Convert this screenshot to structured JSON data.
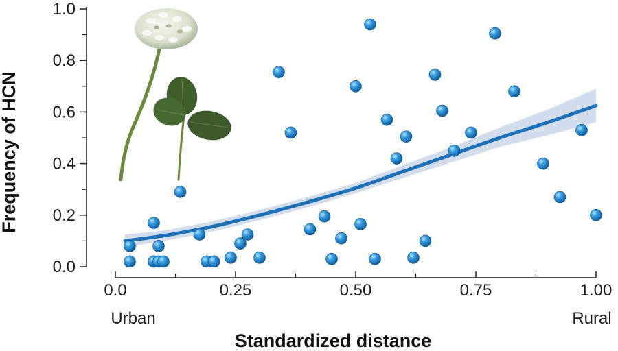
{
  "chart_data": {
    "type": "scatter",
    "title": "",
    "xlabel": "Standardized distance",
    "ylabel": "Frequency of HCN",
    "xlim": [
      0,
      1
    ],
    "ylim": [
      0,
      1
    ],
    "x_ticks": [
      0,
      0.25,
      0.5,
      0.75,
      1
    ],
    "x_tick_labels": [
      "0.0",
      "0.25",
      "0.50",
      "0.75",
      "1.00"
    ],
    "y_ticks": [
      0,
      0.2,
      0.4,
      0.6,
      0.8,
      1
    ],
    "y_tick_labels": [
      "0.0",
      "0.2",
      "0.4",
      "0.6",
      "0.8",
      "1.0"
    ],
    "x_end_labels": {
      "left": "Urban",
      "right": "Rural"
    },
    "grid": false,
    "legend": "none",
    "point_color": "#1a86d0",
    "fit_color": "#1f6fb5",
    "band_color": "#c9d7ea",
    "points": [
      {
        "x": 0.03,
        "y": 0.08
      },
      {
        "x": 0.03,
        "y": 0.02
      },
      {
        "x": 0.08,
        "y": 0.17
      },
      {
        "x": 0.08,
        "y": 0.02
      },
      {
        "x": 0.09,
        "y": 0.08
      },
      {
        "x": 0.09,
        "y": 0.02
      },
      {
        "x": 0.1,
        "y": 0.02
      },
      {
        "x": 0.135,
        "y": 0.29
      },
      {
        "x": 0.175,
        "y": 0.125
      },
      {
        "x": 0.19,
        "y": 0.02
      },
      {
        "x": 0.205,
        "y": 0.02
      },
      {
        "x": 0.24,
        "y": 0.035
      },
      {
        "x": 0.26,
        "y": 0.09
      },
      {
        "x": 0.275,
        "y": 0.125
      },
      {
        "x": 0.3,
        "y": 0.035
      },
      {
        "x": 0.34,
        "y": 0.755
      },
      {
        "x": 0.365,
        "y": 0.52
      },
      {
        "x": 0.405,
        "y": 0.145
      },
      {
        "x": 0.435,
        "y": 0.195
      },
      {
        "x": 0.45,
        "y": 0.03
      },
      {
        "x": 0.47,
        "y": 0.11
      },
      {
        "x": 0.5,
        "y": 0.7
      },
      {
        "x": 0.51,
        "y": 0.165
      },
      {
        "x": 0.53,
        "y": 0.94
      },
      {
        "x": 0.54,
        "y": 0.03
      },
      {
        "x": 0.565,
        "y": 0.57
      },
      {
        "x": 0.585,
        "y": 0.42
      },
      {
        "x": 0.605,
        "y": 0.505
      },
      {
        "x": 0.62,
        "y": 0.035
      },
      {
        "x": 0.645,
        "y": 0.1
      },
      {
        "x": 0.665,
        "y": 0.745
      },
      {
        "x": 0.68,
        "y": 0.605
      },
      {
        "x": 0.705,
        "y": 0.45
      },
      {
        "x": 0.74,
        "y": 0.52
      },
      {
        "x": 0.79,
        "y": 0.905
      },
      {
        "x": 0.83,
        "y": 0.68
      },
      {
        "x": 0.89,
        "y": 0.4
      },
      {
        "x": 0.925,
        "y": 0.27
      },
      {
        "x": 0.97,
        "y": 0.53
      },
      {
        "x": 1.0,
        "y": 0.2
      }
    ],
    "fit": {
      "x": [
        0.02,
        0.1,
        0.2,
        0.3,
        0.4,
        0.5,
        0.6,
        0.7,
        0.8,
        0.9,
        1.0
      ],
      "y": [
        0.1,
        0.12,
        0.155,
        0.2,
        0.25,
        0.305,
        0.37,
        0.435,
        0.5,
        0.56,
        0.625
      ],
      "lower": [
        0.075,
        0.1,
        0.135,
        0.18,
        0.23,
        0.285,
        0.345,
        0.405,
        0.465,
        0.51,
        0.56
      ],
      "upper": [
        0.125,
        0.14,
        0.175,
        0.22,
        0.27,
        0.325,
        0.395,
        0.465,
        0.54,
        0.61,
        0.69
      ]
    }
  }
}
